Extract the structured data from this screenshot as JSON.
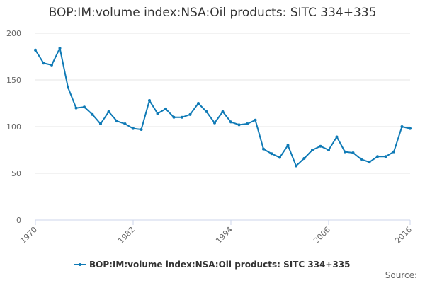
{
  "chart_data": {
    "type": "line",
    "title": "BOP:IM:volume index:NSA:Oil products: SITC 334+335",
    "xlabel": "",
    "ylabel": "",
    "xlim": [
      1970,
      2016
    ],
    "ylim": [
      0,
      200
    ],
    "yticks": [
      0,
      50,
      100,
      150,
      200
    ],
    "xticks": [
      1970,
      1982,
      1994,
      2006,
      2016
    ],
    "grid": "horizontal",
    "legend_position": "bottom",
    "source_label": "Source:",
    "x": [
      1970,
      1971,
      1972,
      1973,
      1974,
      1975,
      1976,
      1977,
      1978,
      1979,
      1980,
      1981,
      1982,
      1983,
      1984,
      1985,
      1986,
      1987,
      1988,
      1989,
      1990,
      1991,
      1992,
      1993,
      1994,
      1995,
      1996,
      1997,
      1998,
      1999,
      2000,
      2001,
      2002,
      2003,
      2004,
      2005,
      2006,
      2007,
      2008,
      2009,
      2010,
      2011,
      2012,
      2013,
      2014,
      2015,
      2016
    ],
    "series": [
      {
        "name": "BOP:IM:volume index:NSA:Oil products: SITC 334+335",
        "color": "#0f7ab6",
        "values": [
          182,
          168,
          166,
          184,
          142,
          120,
          121,
          113,
          103,
          116,
          106,
          103,
          98,
          97,
          128,
          114,
          119,
          110,
          110,
          113,
          125,
          116,
          104,
          116,
          105,
          102,
          103,
          107,
          76,
          71,
          67,
          80,
          58,
          66,
          75,
          79,
          75,
          89,
          73,
          72,
          65,
          62,
          68,
          68,
          73,
          100,
          98
        ]
      }
    ]
  }
}
